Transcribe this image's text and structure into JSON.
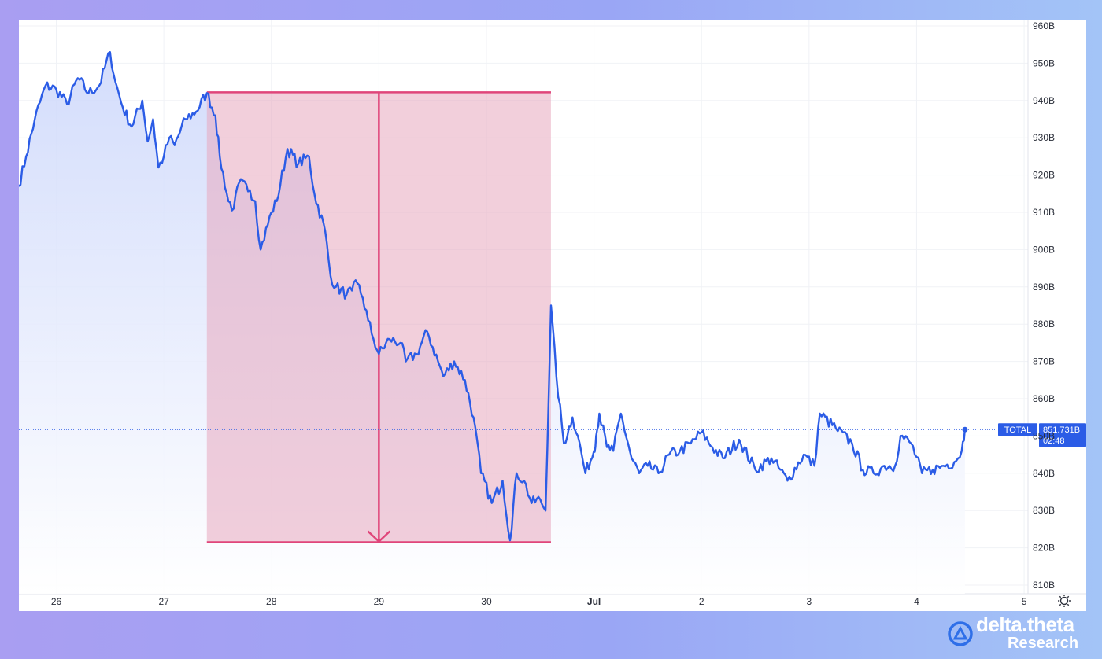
{
  "chart_data": {
    "type": "area",
    "title": "",
    "xlabel": "",
    "ylabel": "",
    "x_tick_labels": [
      "26",
      "27",
      "28",
      "29",
      "30",
      "Jul",
      "2",
      "3",
      "4",
      "5"
    ],
    "bold_x_ticks": [
      "Jul"
    ],
    "y_tick_labels": [
      "810B",
      "820B",
      "830B",
      "840B",
      "850B",
      "860B",
      "870B",
      "880B",
      "890B",
      "900B",
      "910B",
      "920B",
      "930B",
      "940B",
      "950B",
      "960B"
    ],
    "ylim": [
      808,
      963
    ],
    "xlim": [
      25.65,
      35.55
    ],
    "grid": true,
    "series": [
      {
        "name": "TOTAL",
        "x": [
          25.65,
          25.72,
          25.8,
          25.9,
          26.0,
          26.1,
          26.2,
          26.3,
          26.4,
          26.5,
          26.55,
          26.62,
          26.7,
          26.8,
          26.85,
          26.9,
          26.95,
          27.0,
          27.05,
          27.1,
          27.2,
          27.3,
          27.4,
          27.48,
          27.52,
          27.6,
          27.65,
          27.7,
          27.8,
          27.85,
          27.9,
          28.0,
          28.05,
          28.15,
          28.25,
          28.35,
          28.4,
          28.5,
          28.55,
          28.6,
          28.7,
          28.75,
          28.8,
          28.85,
          28.9,
          28.95,
          29.0,
          29.1,
          29.2,
          29.25,
          29.35,
          29.45,
          29.55,
          29.6,
          29.7,
          29.8,
          29.88,
          29.95,
          30.05,
          30.15,
          30.22,
          30.28,
          30.35,
          30.42,
          30.5,
          30.55,
          30.6,
          30.65,
          30.72,
          30.8,
          30.85,
          30.92,
          31.0,
          31.02,
          31.05,
          31.12,
          31.18,
          31.25,
          31.35,
          31.42,
          31.5,
          31.6,
          31.7,
          31.8,
          31.9,
          32.0,
          32.1,
          32.2,
          32.35,
          32.5,
          32.65,
          32.8,
          32.95,
          33.05,
          33.1,
          33.25,
          33.4,
          33.5,
          33.6,
          33.7,
          33.8,
          33.85,
          33.95,
          34.05,
          34.15,
          34.25,
          34.35,
          34.42,
          34.45
        ],
        "values": [
          917,
          925,
          935,
          944,
          943,
          939,
          946,
          942,
          944,
          953,
          945,
          938,
          933,
          940,
          929,
          935,
          922,
          925,
          930,
          928,
          935,
          937,
          942,
          936,
          925,
          913,
          911,
          918,
          916,
          913,
          900,
          910,
          913,
          927,
          923,
          925,
          915,
          905,
          893,
          890,
          888,
          889,
          891,
          887,
          881,
          876,
          872,
          876,
          875,
          870,
          872,
          878,
          870,
          866,
          870,
          865,
          855,
          840,
          832,
          838,
          822,
          840,
          838,
          832,
          833,
          830,
          885,
          866,
          848,
          855,
          850,
          840,
          846,
          850,
          856,
          847,
          846,
          856,
          844,
          840,
          842,
          840,
          845,
          846,
          848,
          851,
          847,
          844,
          849,
          841,
          844,
          838,
          845,
          842,
          856,
          852,
          848,
          841,
          840,
          842,
          842,
          850,
          848,
          840,
          841,
          842,
          843,
          846,
          852
        ]
      }
    ],
    "current_value": 851.73,
    "badge_label": "TOTAL",
    "badge_value": "851.731B",
    "badge_time": "02:48",
    "highlight": {
      "x_start": 27.4,
      "x_end": 30.6,
      "y_top": 942.2,
      "y_bottom": 821.5,
      "arrow_x": 29.0
    },
    "colors": {
      "line": "#2b5ce6",
      "area_top": "#ccd7fb",
      "highlight_fill": "#e8a8be",
      "highlight_line": "#e0457a",
      "badge": "#2b5ce6",
      "grid": "#f0f2f6"
    }
  },
  "branding": {
    "line1": "delta.theta",
    "line2": "Research"
  }
}
